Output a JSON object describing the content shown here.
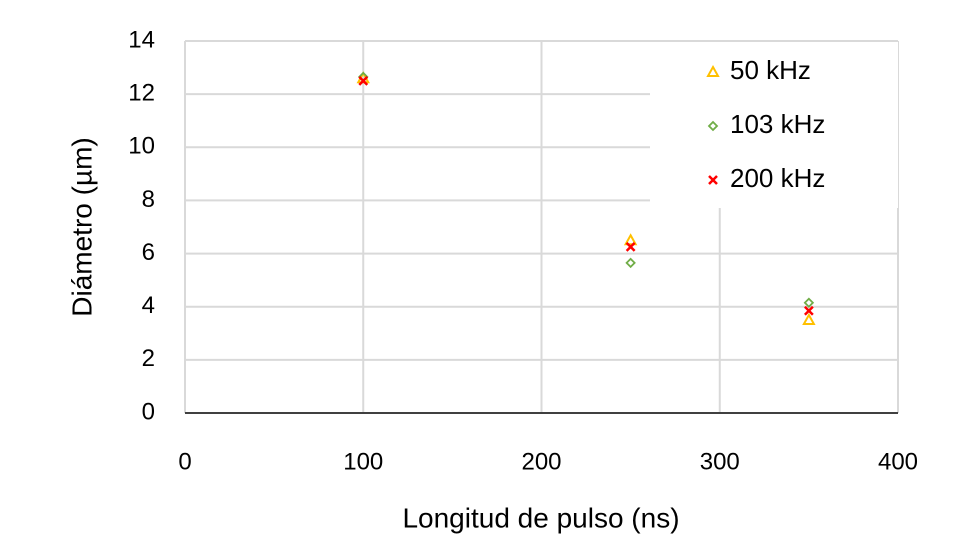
{
  "chart_data": {
    "type": "scatter",
    "x_label": "Longitud de pulso (ns)",
    "y_label": "Diámetro (µm)",
    "xlim": [
      0,
      400
    ],
    "xticks": [
      0,
      100,
      200,
      300,
      400
    ],
    "ylim": [
      0,
      14
    ],
    "yticks": [
      0,
      2,
      4,
      6,
      8,
      10,
      12,
      14
    ],
    "grid": true,
    "legend": "upper right",
    "series": [
      {
        "name": "50 kHz",
        "color": "#ffc000",
        "marker": "triangle",
        "x": [
          100,
          250,
          350
        ],
        "values": [
          12.6,
          6.5,
          3.5
        ]
      },
      {
        "name": "103 kHz",
        "color": "#70ad47",
        "marker": "diamond",
        "x": [
          100,
          250,
          350
        ],
        "values": [
          12.65,
          5.65,
          4.15
        ]
      },
      {
        "name": "200 kHz",
        "color": "#ff0000",
        "marker": "x",
        "x": [
          100,
          250,
          350
        ],
        "values": [
          12.5,
          6.25,
          3.85
        ]
      }
    ]
  }
}
